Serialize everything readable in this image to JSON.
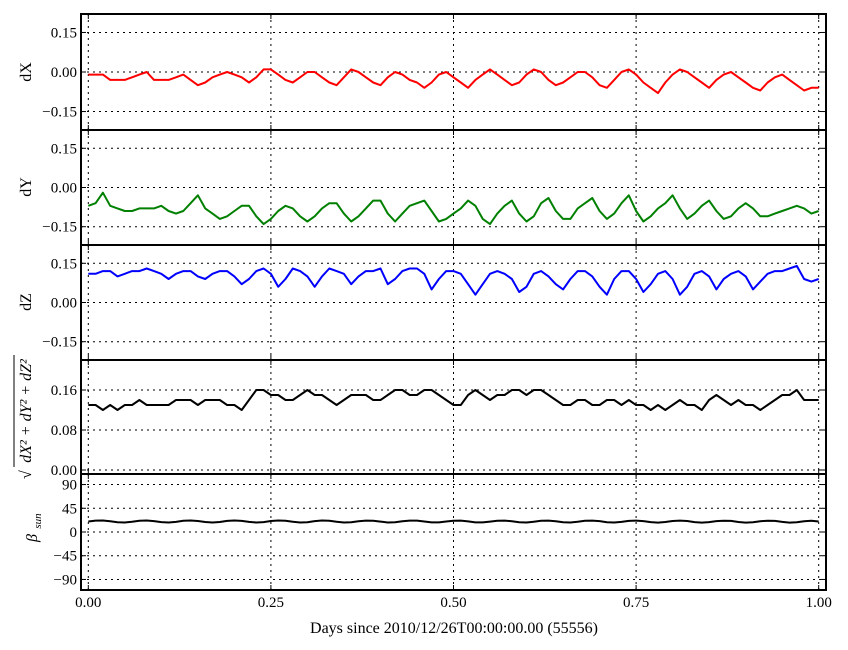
{
  "chart_data": {
    "type": "line",
    "x": [
      0.0,
      0.01,
      0.02,
      0.03,
      0.04,
      0.05,
      0.06,
      0.07,
      0.08,
      0.09,
      0.1,
      0.11,
      0.12,
      0.13,
      0.14,
      0.15,
      0.16,
      0.17,
      0.18,
      0.19,
      0.2,
      0.21,
      0.22,
      0.23,
      0.24,
      0.25,
      0.26,
      0.27,
      0.28,
      0.29,
      0.3,
      0.31,
      0.32,
      0.33,
      0.34,
      0.35,
      0.36,
      0.37,
      0.38,
      0.39,
      0.4,
      0.41,
      0.42,
      0.43,
      0.44,
      0.45,
      0.46,
      0.47,
      0.48,
      0.49,
      0.5,
      0.51,
      0.52,
      0.53,
      0.54,
      0.55,
      0.56,
      0.57,
      0.58,
      0.59,
      0.6,
      0.61,
      0.62,
      0.63,
      0.64,
      0.65,
      0.66,
      0.67,
      0.68,
      0.69,
      0.7,
      0.71,
      0.72,
      0.73,
      0.74,
      0.75,
      0.76,
      0.77,
      0.78,
      0.79,
      0.8,
      0.81,
      0.82,
      0.83,
      0.84,
      0.85,
      0.86,
      0.87,
      0.88,
      0.89,
      0.9,
      0.91,
      0.92,
      0.93,
      0.94,
      0.95,
      0.96,
      0.97,
      0.98,
      0.99,
      1.0
    ],
    "xlabel": "Days since 2010/12/26T00:00:00.00 (55556)",
    "xlim": [
      -0.01,
      1.01
    ],
    "xticks": [
      0,
      0.25,
      0.5,
      0.75,
      1.0
    ],
    "xtick_labels": [
      "0.00",
      "0.25",
      "0.50",
      "0.75",
      "1.00"
    ],
    "grid": true,
    "panels": [
      {
        "ylabel": "dX",
        "color": "#ff0000",
        "ylim": [
          -0.22,
          0.22
        ],
        "yticks": [
          0.15,
          0,
          -0.15
        ],
        "ytick_labels": [
          "0.15",
          "0.00",
          "−0.15"
        ],
        "values": [
          -0.01,
          -0.01,
          -0.01,
          -0.03,
          -0.03,
          -0.03,
          -0.02,
          -0.01,
          0.0,
          -0.03,
          -0.03,
          -0.03,
          -0.02,
          -0.01,
          -0.03,
          -0.05,
          -0.04,
          -0.02,
          -0.01,
          0.0,
          -0.01,
          -0.02,
          -0.04,
          -0.02,
          0.01,
          0.01,
          -0.01,
          -0.03,
          -0.04,
          -0.02,
          0.0,
          0.0,
          -0.02,
          -0.04,
          -0.05,
          -0.02,
          0.01,
          0.0,
          -0.02,
          -0.04,
          -0.05,
          -0.02,
          0.0,
          -0.01,
          -0.03,
          -0.04,
          -0.06,
          -0.04,
          -0.01,
          0.0,
          -0.02,
          -0.04,
          -0.06,
          -0.03,
          -0.01,
          0.01,
          -0.01,
          -0.03,
          -0.05,
          -0.04,
          -0.01,
          0.01,
          0.0,
          -0.03,
          -0.05,
          -0.04,
          -0.02,
          0.0,
          0.0,
          -0.02,
          -0.05,
          -0.06,
          -0.03,
          0.0,
          0.01,
          -0.01,
          -0.04,
          -0.06,
          -0.08,
          -0.04,
          -0.01,
          0.01,
          0.0,
          -0.02,
          -0.04,
          -0.06,
          -0.03,
          -0.01,
          0.0,
          -0.02,
          -0.04,
          -0.06,
          -0.07,
          -0.04,
          -0.02,
          -0.01,
          -0.03,
          -0.05,
          -0.07,
          -0.06,
          -0.06
        ]
      },
      {
        "ylabel": "dY",
        "color": "#008000",
        "ylim": [
          -0.22,
          0.22
        ],
        "yticks": [
          0.15,
          0,
          -0.15
        ],
        "ytick_labels": [
          "0.15",
          "0.00",
          "−0.15"
        ],
        "values": [
          -0.07,
          -0.06,
          -0.02,
          -0.07,
          -0.08,
          -0.09,
          -0.09,
          -0.08,
          -0.08,
          -0.08,
          -0.07,
          -0.09,
          -0.1,
          -0.09,
          -0.06,
          -0.03,
          -0.08,
          -0.1,
          -0.12,
          -0.11,
          -0.09,
          -0.07,
          -0.07,
          -0.11,
          -0.14,
          -0.12,
          -0.09,
          -0.07,
          -0.08,
          -0.11,
          -0.13,
          -0.11,
          -0.08,
          -0.06,
          -0.06,
          -0.1,
          -0.13,
          -0.11,
          -0.08,
          -0.05,
          -0.05,
          -0.1,
          -0.13,
          -0.1,
          -0.07,
          -0.06,
          -0.05,
          -0.09,
          -0.13,
          -0.12,
          -0.1,
          -0.08,
          -0.05,
          -0.07,
          -0.12,
          -0.14,
          -0.1,
          -0.07,
          -0.05,
          -0.1,
          -0.13,
          -0.11,
          -0.06,
          -0.04,
          -0.09,
          -0.12,
          -0.12,
          -0.08,
          -0.06,
          -0.04,
          -0.09,
          -0.12,
          -0.1,
          -0.06,
          -0.03,
          -0.09,
          -0.13,
          -0.11,
          -0.08,
          -0.06,
          -0.03,
          -0.08,
          -0.12,
          -0.1,
          -0.07,
          -0.05,
          -0.09,
          -0.12,
          -0.11,
          -0.08,
          -0.06,
          -0.08,
          -0.11,
          -0.11,
          -0.1,
          -0.09,
          -0.08,
          -0.07,
          -0.08,
          -0.1,
          -0.09
        ]
      },
      {
        "ylabel": "dZ",
        "color": "#0000ff",
        "ylim": [
          -0.22,
          0.22
        ],
        "yticks": [
          0.15,
          0,
          -0.15
        ],
        "ytick_labels": [
          "0.15",
          "0.00",
          "−0.15"
        ],
        "values": [
          0.11,
          0.11,
          0.12,
          0.12,
          0.1,
          0.11,
          0.12,
          0.12,
          0.13,
          0.12,
          0.11,
          0.09,
          0.11,
          0.12,
          0.12,
          0.1,
          0.09,
          0.11,
          0.12,
          0.12,
          0.1,
          0.07,
          0.09,
          0.12,
          0.13,
          0.11,
          0.06,
          0.09,
          0.13,
          0.12,
          0.1,
          0.06,
          0.1,
          0.13,
          0.12,
          0.11,
          0.07,
          0.1,
          0.12,
          0.12,
          0.13,
          0.07,
          0.09,
          0.12,
          0.13,
          0.13,
          0.11,
          0.05,
          0.09,
          0.12,
          0.12,
          0.11,
          0.07,
          0.03,
          0.07,
          0.11,
          0.12,
          0.11,
          0.09,
          0.04,
          0.06,
          0.11,
          0.12,
          0.1,
          0.07,
          0.05,
          0.09,
          0.12,
          0.12,
          0.1,
          0.06,
          0.03,
          0.09,
          0.12,
          0.12,
          0.09,
          0.04,
          0.07,
          0.11,
          0.12,
          0.09,
          0.03,
          0.06,
          0.11,
          0.12,
          0.1,
          0.05,
          0.09,
          0.11,
          0.12,
          0.1,
          0.05,
          0.08,
          0.11,
          0.12,
          0.12,
          0.13,
          0.14,
          0.09,
          0.08,
          0.09
        ]
      },
      {
        "ylabel": "dX² + dY² + dZ²",
        "ylabel_prefix": "√",
        "color": "#000000",
        "ylim": [
          -0.008,
          0.22
        ],
        "yticks": [
          0.16,
          0.08,
          0
        ],
        "ytick_labels": [
          "0.16",
          "0.08",
          "0.00"
        ],
        "values": [
          0.13,
          0.13,
          0.12,
          0.13,
          0.12,
          0.13,
          0.13,
          0.14,
          0.13,
          0.13,
          0.13,
          0.13,
          0.14,
          0.14,
          0.14,
          0.13,
          0.14,
          0.14,
          0.14,
          0.13,
          0.13,
          0.12,
          0.14,
          0.16,
          0.16,
          0.15,
          0.15,
          0.14,
          0.14,
          0.15,
          0.16,
          0.15,
          0.15,
          0.14,
          0.13,
          0.14,
          0.15,
          0.15,
          0.15,
          0.14,
          0.14,
          0.15,
          0.16,
          0.16,
          0.15,
          0.15,
          0.16,
          0.16,
          0.15,
          0.14,
          0.13,
          0.13,
          0.15,
          0.16,
          0.15,
          0.14,
          0.15,
          0.15,
          0.16,
          0.16,
          0.15,
          0.16,
          0.16,
          0.15,
          0.14,
          0.13,
          0.13,
          0.14,
          0.14,
          0.13,
          0.13,
          0.14,
          0.14,
          0.13,
          0.14,
          0.13,
          0.13,
          0.12,
          0.13,
          0.12,
          0.13,
          0.14,
          0.13,
          0.13,
          0.12,
          0.14,
          0.15,
          0.14,
          0.13,
          0.14,
          0.13,
          0.13,
          0.12,
          0.13,
          0.14,
          0.15,
          0.15,
          0.16,
          0.14,
          0.14,
          0.14
        ]
      },
      {
        "ylabel": "β",
        "ylabel_sub": "sun",
        "color": "#000000",
        "ylim": [
          -110,
          110
        ],
        "yticks": [
          90,
          45,
          0,
          -45,
          -90
        ],
        "ytick_labels": [
          "90",
          "45",
          "0",
          "−45",
          "−90"
        ],
        "values": [
          20,
          21.7,
          21.8,
          20.3,
          18.5,
          18.1,
          19.5,
          21.4,
          21.9,
          20.6,
          18.7,
          18.0,
          19.2,
          21.2,
          21.9,
          20.9,
          18.9,
          18.0,
          19.0,
          21.0,
          21.9,
          21.1,
          19.1,
          18.0,
          18.8,
          20.8,
          21.8,
          21.3,
          19.3,
          18.1,
          18.6,
          20.6,
          21.8,
          21.4,
          19.5,
          18.1,
          18.5,
          20.4,
          21.7,
          21.5,
          19.7,
          18.1,
          18.4,
          20.2,
          21.6,
          21.6,
          19.9,
          18.2,
          18.3,
          20.0,
          21.5,
          21.6,
          20.1,
          18.3,
          18.2,
          19.8,
          21.4,
          21.6,
          20.2,
          18.4,
          18.1,
          19.6,
          21.3,
          21.6,
          20.4,
          18.5,
          18.0,
          19.4,
          21.2,
          21.6,
          20.6,
          18.6,
          18.0,
          19.2,
          21.0,
          21.6,
          20.7,
          18.7,
          17.9,
          19.0,
          20.9,
          21.6,
          20.9,
          18.8,
          17.9,
          18.8,
          20.7,
          21.5,
          21.0,
          19.0,
          17.9,
          18.6,
          20.5,
          21.4,
          21.1,
          19.2,
          17.9,
          18.5,
          20.3,
          21.3,
          20.0
        ]
      }
    ]
  }
}
